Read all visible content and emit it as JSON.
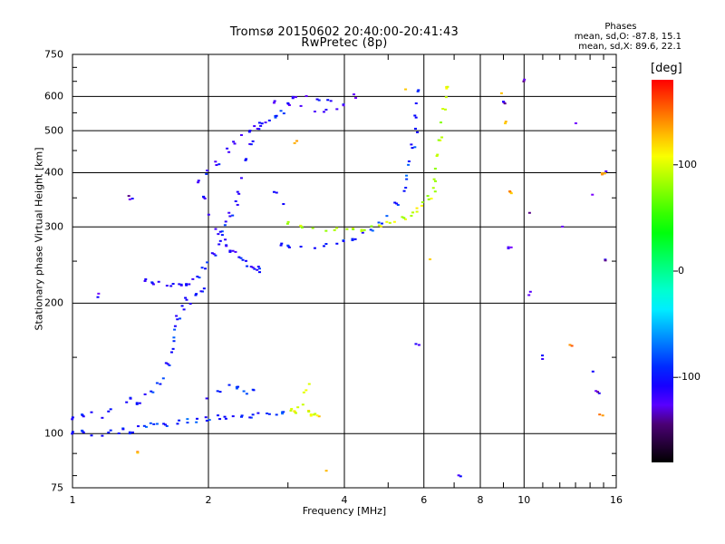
{
  "chart_data": {
    "type": "scatter",
    "title": "Tromsø 20150602 20:40:00-20:41:43",
    "subtitle": "RwPretec (8p)",
    "xlabel": "Frequency [MHz]",
    "ylabel": "Stationary phase Virtual Height [km]",
    "x_scale": "log",
    "y_scale": "log",
    "xlim": [
      1,
      16
    ],
    "ylim": [
      75,
      750
    ],
    "x_ticks": [
      "1",
      "2",
      "4",
      "6",
      "8",
      "10",
      "16"
    ],
    "x_tick_values": [
      1,
      2,
      4,
      6,
      8,
      10,
      16
    ],
    "x_minor_ticks": [
      3,
      5,
      7,
      9,
      11,
      12,
      13,
      14,
      15
    ],
    "y_ticks": [
      "75",
      "100",
      "200",
      "300",
      "400",
      "500",
      "600",
      "750"
    ],
    "y_tick_values": [
      75,
      100,
      200,
      300,
      400,
      500,
      600,
      750
    ],
    "grid": true,
    "colorbar": {
      "label": "[deg]",
      "range": [
        -180,
        180
      ],
      "ticks": [
        "100",
        "0",
        "-100"
      ],
      "tick_values": [
        100,
        0,
        -100
      ]
    },
    "phases_info": {
      "heading": "Phases",
      "line1": "mean, sd,O: -87.8, 15.1",
      "line2": "mean, sd,X:  89.6, 22.1"
    },
    "series": [
      {
        "trace": "O-mode low E",
        "phase": -90,
        "points": [
          [
            1.0,
            100
          ],
          [
            1.05,
            101
          ],
          [
            1.1,
            99
          ],
          [
            1.15,
            100
          ],
          [
            1.2,
            101
          ],
          [
            1.25,
            100
          ],
          [
            1.3,
            102
          ],
          [
            1.35,
            101
          ],
          [
            1.4,
            103
          ],
          [
            1.45,
            104
          ],
          [
            1.5,
            105
          ],
          [
            1.55,
            106
          ],
          [
            1.6,
            105
          ],
          [
            1.7,
            106
          ],
          [
            1.8,
            107
          ],
          [
            1.9,
            107
          ],
          [
            2.0,
            108
          ],
          [
            2.1,
            109
          ],
          [
            2.2,
            109
          ],
          [
            2.3,
            110
          ],
          [
            2.4,
            110
          ],
          [
            2.5,
            110
          ],
          [
            2.6,
            111
          ],
          [
            2.7,
            111
          ],
          [
            2.8,
            111
          ],
          [
            2.9,
            112
          ]
        ]
      },
      {
        "trace": "O-mode E scatter",
        "phase": -95,
        "points": [
          [
            1.0,
            108
          ],
          [
            1.05,
            110
          ],
          [
            1.1,
            112
          ],
          [
            1.15,
            110
          ],
          [
            1.2,
            113
          ],
          [
            1.3,
            118
          ],
          [
            1.35,
            120
          ],
          [
            1.4,
            118
          ],
          [
            1.45,
            122
          ],
          [
            1.5,
            125
          ],
          [
            1.55,
            130
          ],
          [
            1.6,
            135
          ],
          [
            1.62,
            145
          ],
          [
            1.65,
            155
          ],
          [
            1.68,
            165
          ],
          [
            1.7,
            175
          ],
          [
            1.72,
            185
          ],
          [
            1.75,
            195
          ],
          [
            1.8,
            205
          ],
          [
            1.85,
            200
          ],
          [
            1.9,
            210
          ],
          [
            1.95,
            215
          ],
          [
            2.0,
            120
          ],
          [
            2.1,
            125
          ],
          [
            2.2,
            130
          ],
          [
            2.3,
            128
          ],
          [
            2.4,
            124
          ],
          [
            2.5,
            126
          ]
        ]
      },
      {
        "trace": "O-mode F1 cusp",
        "phase": -100,
        "points": [
          [
            1.45,
            225
          ],
          [
            1.5,
            222
          ],
          [
            1.55,
            224
          ],
          [
            1.6,
            222
          ],
          [
            1.65,
            220
          ],
          [
            1.7,
            221
          ],
          [
            1.75,
            219
          ],
          [
            1.8,
            222
          ],
          [
            1.85,
            225
          ],
          [
            1.9,
            230
          ],
          [
            1.95,
            240
          ],
          [
            2.0,
            250
          ],
          [
            2.05,
            260
          ],
          [
            2.1,
            275
          ],
          [
            2.15,
            290
          ],
          [
            2.2,
            305
          ],
          [
            2.25,
            320
          ],
          [
            2.3,
            340
          ],
          [
            2.35,
            360
          ],
          [
            2.4,
            390
          ],
          [
            2.45,
            430
          ],
          [
            2.5,
            470
          ],
          [
            2.55,
            510
          ],
          [
            2.6,
            520
          ],
          [
            2.7,
            530
          ],
          [
            2.8,
            540
          ],
          [
            2.9,
            550
          ]
        ]
      },
      {
        "trace": "O-mode F cluster",
        "phase": -105,
        "points": [
          [
            1.9,
            380
          ],
          [
            1.95,
            350
          ],
          [
            2.0,
            320
          ],
          [
            2.05,
            300
          ],
          [
            2.1,
            290
          ],
          [
            2.15,
            280
          ],
          [
            2.2,
            270
          ],
          [
            2.25,
            265
          ],
          [
            2.3,
            260
          ],
          [
            2.35,
            255
          ],
          [
            2.4,
            250
          ],
          [
            2.45,
            245
          ],
          [
            2.5,
            242
          ],
          [
            2.55,
            240
          ],
          [
            2.6,
            238
          ],
          [
            2.0,
            400
          ],
          [
            2.1,
            420
          ],
          [
            2.2,
            450
          ],
          [
            2.3,
            470
          ],
          [
            2.4,
            490
          ],
          [
            2.5,
            500
          ],
          [
            2.6,
            510
          ],
          [
            2.7,
            520
          ],
          [
            2.8,
            360
          ],
          [
            2.9,
            340
          ]
        ]
      },
      {
        "trace": "O-mode F2",
        "phase": -90,
        "points": [
          [
            2.9,
            272
          ],
          [
            3.0,
            270
          ],
          [
            3.2,
            270
          ],
          [
            3.4,
            271
          ],
          [
            3.6,
            272
          ],
          [
            3.8,
            274
          ],
          [
            4.0,
            277
          ],
          [
            4.2,
            282
          ],
          [
            4.4,
            288
          ],
          [
            4.6,
            295
          ],
          [
            4.8,
            305
          ],
          [
            5.0,
            320
          ],
          [
            5.2,
            340
          ],
          [
            5.4,
            365
          ],
          [
            5.5,
            390
          ],
          [
            5.6,
            420
          ],
          [
            5.7,
            460
          ],
          [
            5.75,
            500
          ],
          [
            5.8,
            540
          ],
          [
            5.85,
            580
          ],
          [
            5.9,
            620
          ]
        ]
      },
      {
        "trace": "O-mode high echo",
        "phase": -110,
        "points": [
          [
            2.8,
            580
          ],
          [
            3.0,
            575
          ],
          [
            3.2,
            570
          ],
          [
            3.4,
            560
          ],
          [
            3.6,
            555
          ],
          [
            3.8,
            560
          ],
          [
            4.0,
            570
          ],
          [
            3.1,
            600
          ],
          [
            3.3,
            595
          ],
          [
            3.5,
            590
          ],
          [
            3.7,
            585
          ]
        ]
      },
      {
        "trace": "X-mode F2",
        "phase": 95,
        "points": [
          [
            3.0,
            305
          ],
          [
            3.2,
            300
          ],
          [
            3.4,
            298
          ],
          [
            3.6,
            297
          ],
          [
            3.8,
            296
          ],
          [
            4.0,
            296
          ],
          [
            4.2,
            295
          ],
          [
            4.4,
            296
          ],
          [
            4.6,
            298
          ],
          [
            4.8,
            302
          ],
          [
            5.0,
            306
          ],
          [
            5.2,
            310
          ],
          [
            5.4,
            315
          ],
          [
            5.6,
            320
          ],
          [
            5.8,
            328
          ],
          [
            6.0,
            338
          ],
          [
            6.2,
            350
          ],
          [
            6.3,
            365
          ],
          [
            6.4,
            385
          ],
          [
            6.45,
            410
          ],
          [
            6.5,
            440
          ],
          [
            6.55,
            480
          ],
          [
            6.6,
            520
          ],
          [
            6.62,
            560
          ],
          [
            6.65,
            600
          ],
          [
            6.7,
            630
          ]
        ]
      },
      {
        "trace": "X-mode E",
        "phase": 110,
        "points": [
          [
            3.05,
            113
          ],
          [
            3.1,
            112
          ],
          [
            3.15,
            115
          ],
          [
            3.2,
            118
          ],
          [
            3.25,
            125
          ],
          [
            3.3,
            130
          ],
          [
            3.35,
            112
          ],
          [
            3.4,
            111
          ],
          [
            3.45,
            110
          ],
          [
            3.5,
            110
          ]
        ]
      },
      {
        "trace": "scattered",
        "phase": -120,
        "points": [
          [
            10.0,
            650
          ],
          [
            9.0,
            580
          ],
          [
            13.0,
            520
          ],
          [
            14.0,
            360
          ],
          [
            15.0,
            400
          ],
          [
            12.0,
            300
          ],
          [
            15.2,
            250
          ],
          [
            9.3,
            270
          ],
          [
            10.3,
            320
          ],
          [
            7.2,
            80
          ],
          [
            5.8,
            160
          ],
          [
            14.3,
            140
          ],
          [
            14.5,
            125
          ],
          [
            10.2,
            210
          ],
          [
            11.0,
            150
          ],
          [
            1.15,
            208
          ],
          [
            1.35,
            350
          ],
          [
            4.2,
            600
          ]
        ]
      },
      {
        "trace": "scattered warm",
        "phase": 140,
        "points": [
          [
            9.1,
            520
          ],
          [
            9.3,
            360
          ],
          [
            8.9,
            610
          ],
          [
            5.4,
            630
          ],
          [
            3.1,
            470
          ],
          [
            3.6,
            82
          ],
          [
            1.4,
            90
          ],
          [
            15.0,
            400
          ],
          [
            6.2,
            250
          ],
          [
            12.7,
            160
          ],
          [
            14.8,
            110
          ]
        ]
      }
    ]
  }
}
